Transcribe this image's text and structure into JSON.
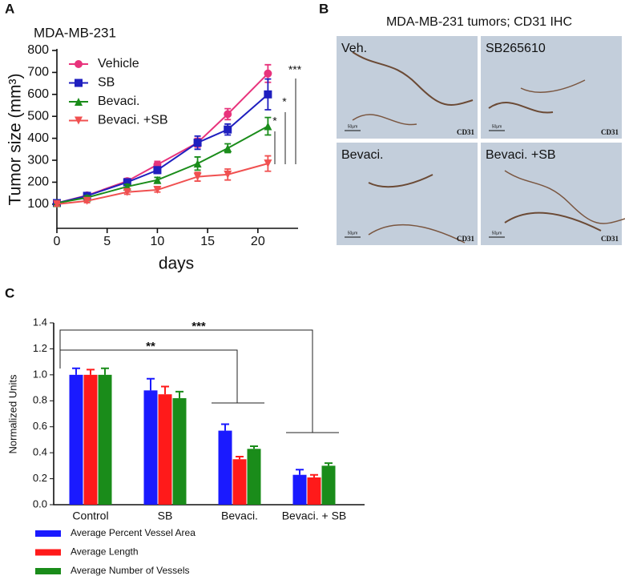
{
  "panel_labels": [
    "A",
    "B",
    "C"
  ],
  "micrographs": {
    "title": "MDA-MB-231 tumors; CD31 IHC",
    "panels": [
      {
        "label": "Veh.",
        "stain": "CD31",
        "scale": "50µm"
      },
      {
        "label": "SB265610",
        "stain": "CD31",
        "scale": "50µm"
      },
      {
        "label": "Bevaci.",
        "stain": "CD31",
        "scale": "50µm"
      },
      {
        "label": "Bevaci. +SB",
        "stain": "CD31",
        "scale": "50µm"
      }
    ]
  },
  "chart_data": [
    {
      "type": "line",
      "title": "MDA-MB-231",
      "x_label": "days",
      "y_label": "Tumor size (mm³)",
      "x": [
        0,
        3,
        7,
        10,
        14,
        17,
        21
      ],
      "series": [
        {
          "name": "Vehicle",
          "color": "#e8337c",
          "marker": "circle",
          "values": [
            105,
            140,
            205,
            280,
            380,
            510,
            695
          ],
          "errors": [
            8,
            10,
            12,
            15,
            20,
            25,
            40
          ]
        },
        {
          "name": "SB",
          "color": "#1f1fbf",
          "marker": "square",
          "values": [
            105,
            138,
            200,
            255,
            380,
            440,
            600
          ],
          "errors": [
            8,
            8,
            10,
            15,
            30,
            25,
            70
          ]
        },
        {
          "name": "Bevaci.",
          "color": "#1a8c1a",
          "marker": "triangle-up",
          "values": [
            105,
            130,
            180,
            210,
            285,
            355,
            455
          ],
          "errors": [
            8,
            8,
            10,
            12,
            30,
            20,
            40
          ]
        },
        {
          "name": "Bevaci. +SB",
          "color": "#f05050",
          "marker": "triangle-down",
          "values": [
            100,
            115,
            155,
            165,
            225,
            235,
            285
          ],
          "errors": [
            8,
            8,
            10,
            10,
            20,
            25,
            35
          ]
        }
      ],
      "xlim": [
        0,
        24
      ],
      "xticks": [
        0,
        5,
        10,
        15,
        20
      ],
      "ylim": [
        -10,
        800
      ],
      "yticks": [
        100,
        200,
        300,
        400,
        500,
        600,
        700,
        800
      ],
      "annotations": [
        "*",
        "*",
        "***"
      ]
    },
    {
      "type": "bar",
      "y_label": "Normalized Units",
      "categories": [
        "Control",
        "SB",
        "Bevaci.",
        "Bevaci. + SB"
      ],
      "series": [
        {
          "name": "Average Percent Vessel Area",
          "color": "#1a1aff",
          "values": [
            1.0,
            0.88,
            0.57,
            0.23
          ],
          "errors": [
            0.05,
            0.09,
            0.05,
            0.04
          ]
        },
        {
          "name": "Average Length",
          "color": "#ff1a1a",
          "values": [
            1.0,
            0.85,
            0.35,
            0.21
          ],
          "errors": [
            0.04,
            0.06,
            0.02,
            0.02
          ]
        },
        {
          "name": "Average Number of Vessels",
          "color": "#1a8c1a",
          "values": [
            1.0,
            0.82,
            0.43,
            0.3
          ],
          "errors": [
            0.05,
            0.05,
            0.02,
            0.02
          ]
        }
      ],
      "ylim": [
        0,
        1.4
      ],
      "yticks": [
        {
          "value": 0,
          "label": "0.0"
        },
        0.2,
        0.4,
        0.6,
        0.8,
        {
          "value": 1,
          "label": "1.0"
        },
        1.2,
        1.4
      ],
      "annotations": [
        "**",
        "***"
      ]
    }
  ]
}
